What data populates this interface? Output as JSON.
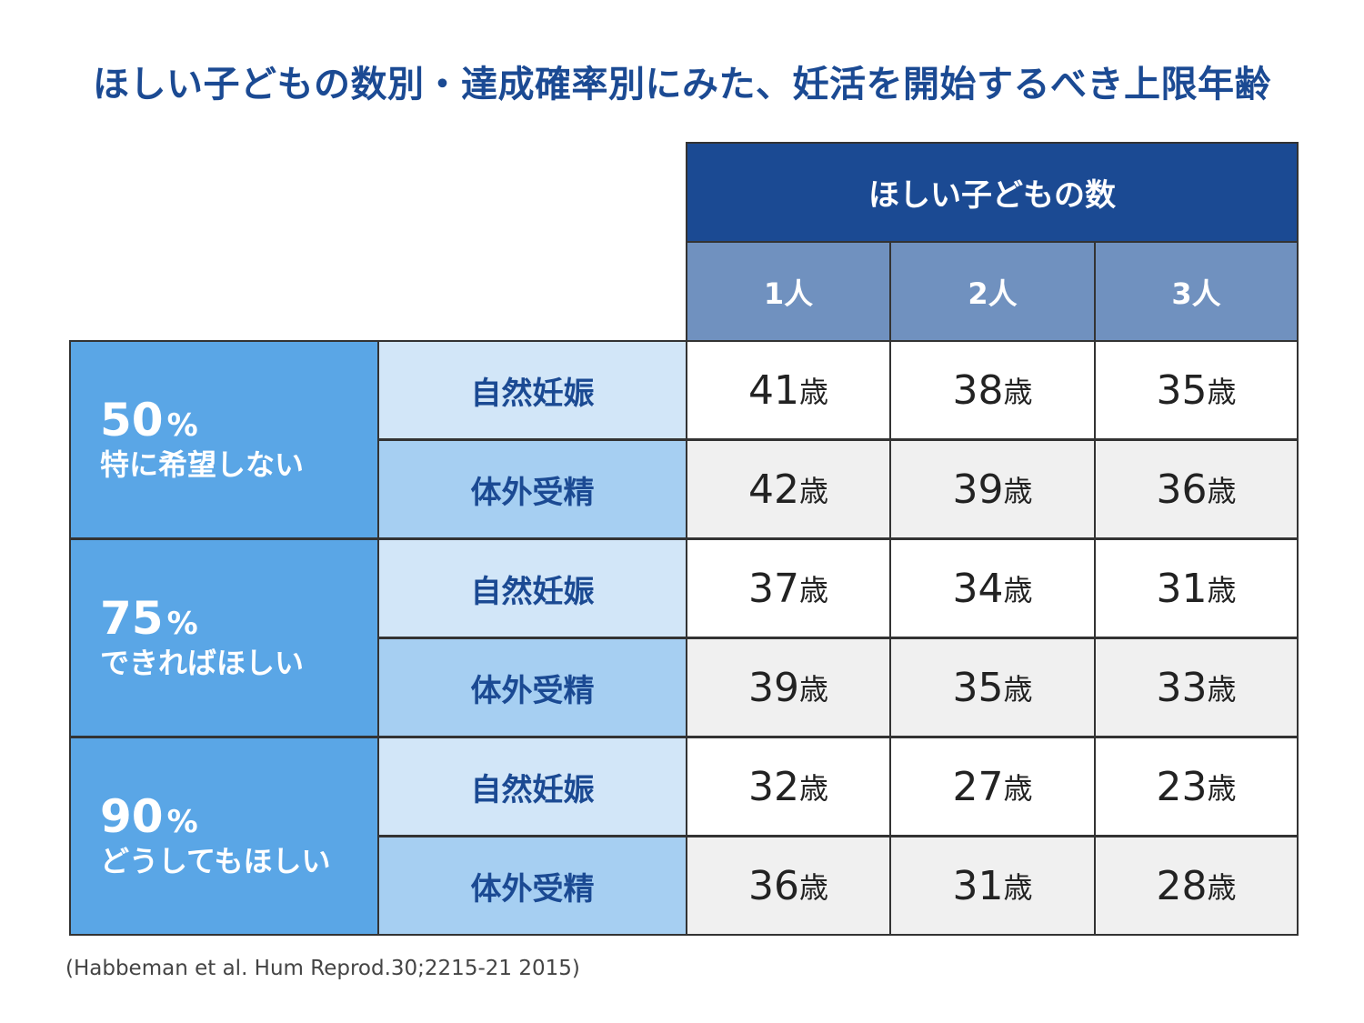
{
  "title": "ほしい子どもの数別・達成確率別にみた、妊活を開始するべき上限年齢",
  "chart_data": {
    "type": "table",
    "header": "ほしい子どもの数",
    "columns": [
      "1人",
      "2人",
      "3人"
    ],
    "unit": "歳",
    "groups": [
      {
        "percent": "50",
        "percent_unit": "%",
        "label": "特に希望しない",
        "rows": [
          {
            "method": "自然妊娠",
            "values": [
              "41",
              "38",
              "35"
            ]
          },
          {
            "method": "体外受精",
            "values": [
              "42",
              "39",
              "36"
            ]
          }
        ]
      },
      {
        "percent": "75",
        "percent_unit": "%",
        "label": "できればほしい",
        "rows": [
          {
            "method": "自然妊娠",
            "values": [
              "37",
              "34",
              "31"
            ]
          },
          {
            "method": "体外受精",
            "values": [
              "39",
              "35",
              "33"
            ]
          }
        ]
      },
      {
        "percent": "90",
        "percent_unit": "%",
        "label": "どうしてもほしい",
        "rows": [
          {
            "method": "自然妊娠",
            "values": [
              "32",
              "27",
              "23"
            ]
          },
          {
            "method": "体外受精",
            "values": [
              "36",
              "31",
              "28"
            ]
          }
        ]
      }
    ]
  },
  "source": "(Habbeman et al. Hum Reprod.30;2215-21 2015)",
  "colors": {
    "navy": "#1b4a93",
    "column_header": "#7091bf",
    "group_blue": "#5aa6e6",
    "method_light": "#d2e6f8",
    "method_mid": "#a6cff2",
    "row_gray": "#f0f0f0"
  }
}
